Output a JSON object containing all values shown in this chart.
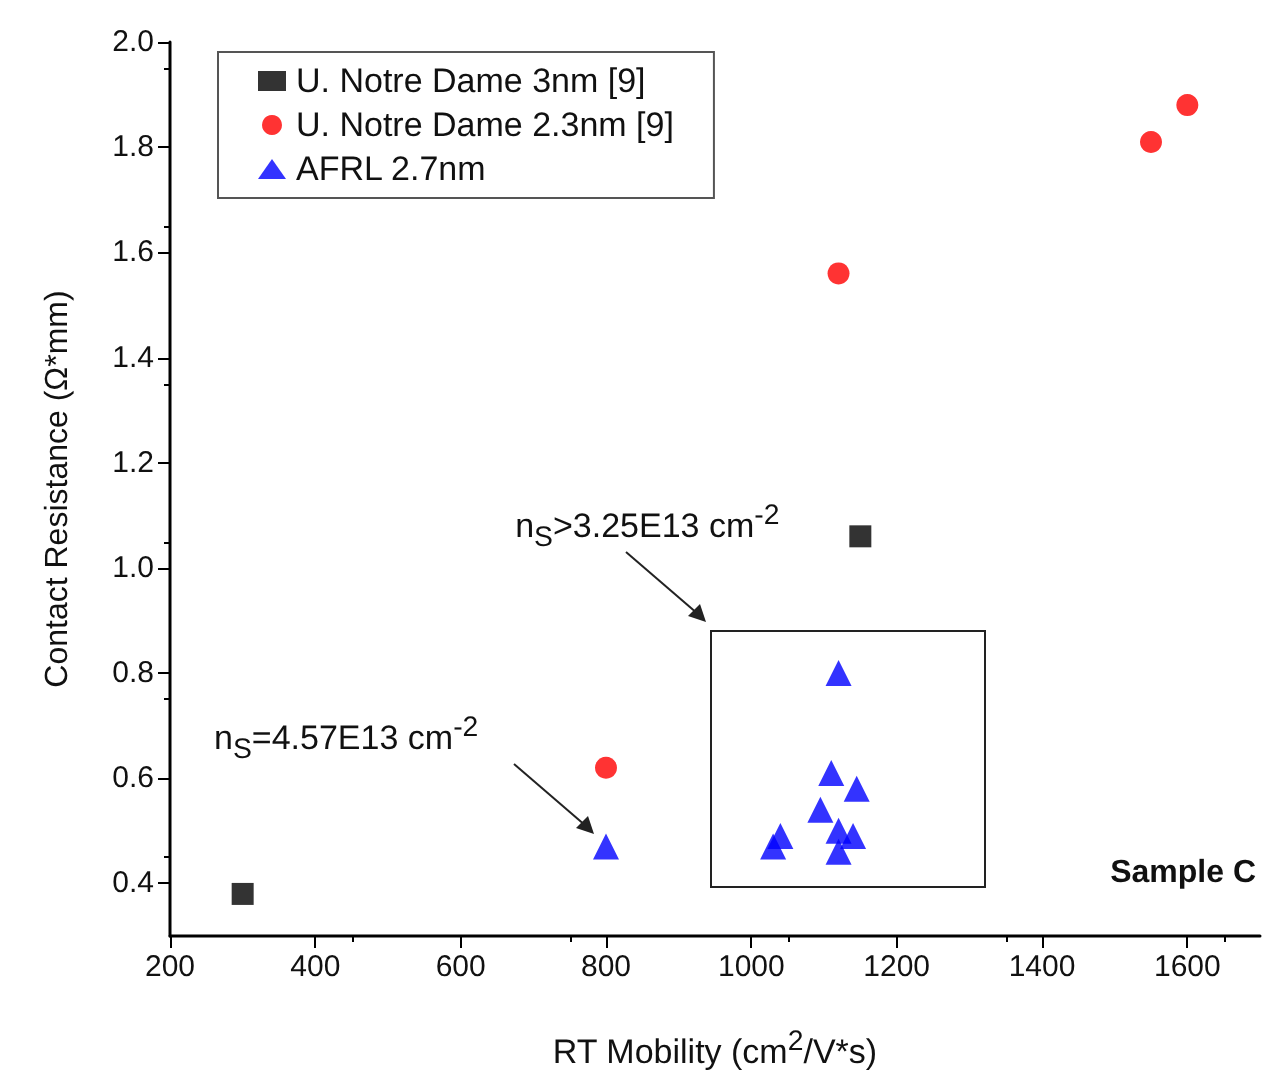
{
  "chart_data": {
    "type": "scatter",
    "xlabel": "RT Mobility (cm$^{2}$/V*s)",
    "ylabel": "Contact Resistance (Ω*mm)",
    "xlim": [
      200,
      1700
    ],
    "xticks": [
      200,
      400,
      600,
      800,
      1000,
      1200,
      1400,
      1600
    ],
    "ylim": [
      0.3,
      2.0
    ],
    "yticks": [
      0.4,
      0.6,
      0.8,
      {
        "value": 1,
        "label": "1.0"
      },
      1.2,
      1.4,
      1.6,
      1.8,
      {
        "value": 2,
        "label": "2.0"
      }
    ],
    "grid": false,
    "legend": "top left",
    "series": [
      {
        "name": "U. Notre Dame 3nm [9]",
        "color": "#000000",
        "marker": "square",
        "x": [
          300,
          1150
        ],
        "values": [
          0.38,
          1.06
        ]
      },
      {
        "name": "U. Notre Dame 2.3nm [9]",
        "color": "#ff0000",
        "marker": "circle",
        "x": [
          800,
          1120,
          1550,
          1600
        ],
        "values": [
          0.62,
          1.56,
          1.81,
          1.88
        ]
      },
      {
        "name": "AFRL 2.7nm",
        "color": "#0000ff",
        "marker": "triangle",
        "x": [
          800,
          1030,
          1040,
          1095,
          1110,
          1120,
          1120,
          1120,
          1140,
          1145
        ],
        "values": [
          0.47,
          0.47,
          0.49,
          0.54,
          0.61,
          0.8,
          0.5,
          0.46,
          0.49,
          0.58
        ]
      }
    ],
    "annotations": [
      "n$_{S}$>3.25E13 cm$^{-2}$",
      "n$_{S}$=4.57E13 cm$^{-2}$",
      "Sample C"
    ]
  }
}
